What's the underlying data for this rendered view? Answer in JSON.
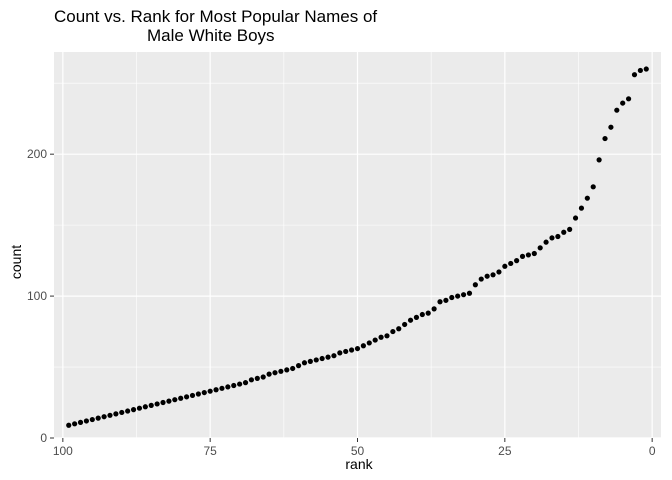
{
  "chart_data": {
    "type": "scatter",
    "title_lines": [
      "Count vs. Rank for Most Popular Names of",
      "Male White Boys"
    ],
    "xlabel": "rank",
    "ylabel": "count",
    "x_reversed": true,
    "xlim": [
      101.5,
      -1.5
    ],
    "ylim": [
      0,
      272
    ],
    "x_ticks": [
      100,
      75,
      50,
      25,
      0
    ],
    "x_tick_labels": [
      "100",
      "75",
      "50",
      "25",
      "0"
    ],
    "y_ticks": [
      0,
      100,
      200
    ],
    "y_tick_labels": [
      "0",
      "100",
      "200"
    ],
    "grid": true,
    "panel_color": "#ebebeb",
    "grid_color": "#ffffff",
    "point_color": "#000000",
    "points": [
      {
        "rank": 1,
        "count": 260
      },
      {
        "rank": 2,
        "count": 259
      },
      {
        "rank": 3,
        "count": 256
      },
      {
        "rank": 4,
        "count": 239
      },
      {
        "rank": 5,
        "count": 236
      },
      {
        "rank": 6,
        "count": 231
      },
      {
        "rank": 7,
        "count": 219
      },
      {
        "rank": 8,
        "count": 211
      },
      {
        "rank": 9,
        "count": 196
      },
      {
        "rank": 10,
        "count": 177
      },
      {
        "rank": 11,
        "count": 169
      },
      {
        "rank": 12,
        "count": 162
      },
      {
        "rank": 13,
        "count": 155
      },
      {
        "rank": 14,
        "count": 147
      },
      {
        "rank": 15,
        "count": 145
      },
      {
        "rank": 16,
        "count": 142
      },
      {
        "rank": 17,
        "count": 141
      },
      {
        "rank": 18,
        "count": 138
      },
      {
        "rank": 19,
        "count": 134
      },
      {
        "rank": 20,
        "count": 130
      },
      {
        "rank": 21,
        "count": 129
      },
      {
        "rank": 22,
        "count": 128
      },
      {
        "rank": 23,
        "count": 125
      },
      {
        "rank": 24,
        "count": 123
      },
      {
        "rank": 25,
        "count": 121
      },
      {
        "rank": 26,
        "count": 117
      },
      {
        "rank": 27,
        "count": 115
      },
      {
        "rank": 28,
        "count": 114
      },
      {
        "rank": 29,
        "count": 112
      },
      {
        "rank": 30,
        "count": 108
      },
      {
        "rank": 31,
        "count": 102
      },
      {
        "rank": 32,
        "count": 101
      },
      {
        "rank": 33,
        "count": 100
      },
      {
        "rank": 34,
        "count": 99
      },
      {
        "rank": 35,
        "count": 97
      },
      {
        "rank": 36,
        "count": 96
      },
      {
        "rank": 37,
        "count": 91
      },
      {
        "rank": 38,
        "count": 88
      },
      {
        "rank": 39,
        "count": 87
      },
      {
        "rank": 40,
        "count": 85
      },
      {
        "rank": 41,
        "count": 83
      },
      {
        "rank": 42,
        "count": 80
      },
      {
        "rank": 43,
        "count": 77
      },
      {
        "rank": 44,
        "count": 75
      },
      {
        "rank": 45,
        "count": 72
      },
      {
        "rank": 46,
        "count": 71
      },
      {
        "rank": 47,
        "count": 69
      },
      {
        "rank": 48,
        "count": 67
      },
      {
        "rank": 49,
        "count": 65
      },
      {
        "rank": 50,
        "count": 63
      },
      {
        "rank": 51,
        "count": 62
      },
      {
        "rank": 52,
        "count": 61
      },
      {
        "rank": 53,
        "count": 60
      },
      {
        "rank": 54,
        "count": 58
      },
      {
        "rank": 55,
        "count": 57
      },
      {
        "rank": 56,
        "count": 56
      },
      {
        "rank": 57,
        "count": 55
      },
      {
        "rank": 58,
        "count": 54
      },
      {
        "rank": 59,
        "count": 53
      },
      {
        "rank": 60,
        "count": 51
      },
      {
        "rank": 61,
        "count": 49
      },
      {
        "rank": 62,
        "count": 48
      },
      {
        "rank": 63,
        "count": 47
      },
      {
        "rank": 64,
        "count": 46
      },
      {
        "rank": 65,
        "count": 45
      },
      {
        "rank": 66,
        "count": 43
      },
      {
        "rank": 67,
        "count": 42
      },
      {
        "rank": 68,
        "count": 41
      },
      {
        "rank": 69,
        "count": 39
      },
      {
        "rank": 70,
        "count": 38
      },
      {
        "rank": 71,
        "count": 37
      },
      {
        "rank": 72,
        "count": 36
      },
      {
        "rank": 73,
        "count": 35
      },
      {
        "rank": 74,
        "count": 34
      },
      {
        "rank": 75,
        "count": 33
      },
      {
        "rank": 76,
        "count": 32
      },
      {
        "rank": 77,
        "count": 31
      },
      {
        "rank": 78,
        "count": 30
      },
      {
        "rank": 79,
        "count": 29
      },
      {
        "rank": 80,
        "count": 28
      },
      {
        "rank": 81,
        "count": 27
      },
      {
        "rank": 82,
        "count": 26
      },
      {
        "rank": 83,
        "count": 25
      },
      {
        "rank": 84,
        "count": 24
      },
      {
        "rank": 85,
        "count": 23
      },
      {
        "rank": 86,
        "count": 22
      },
      {
        "rank": 87,
        "count": 21
      },
      {
        "rank": 88,
        "count": 20
      },
      {
        "rank": 89,
        "count": 19
      },
      {
        "rank": 90,
        "count": 18
      },
      {
        "rank": 91,
        "count": 17
      },
      {
        "rank": 92,
        "count": 16
      },
      {
        "rank": 93,
        "count": 15
      },
      {
        "rank": 94,
        "count": 14
      },
      {
        "rank": 95,
        "count": 13
      },
      {
        "rank": 96,
        "count": 12
      },
      {
        "rank": 97,
        "count": 11
      },
      {
        "rank": 98,
        "count": 10
      },
      {
        "rank": 99,
        "count": 9
      }
    ]
  }
}
